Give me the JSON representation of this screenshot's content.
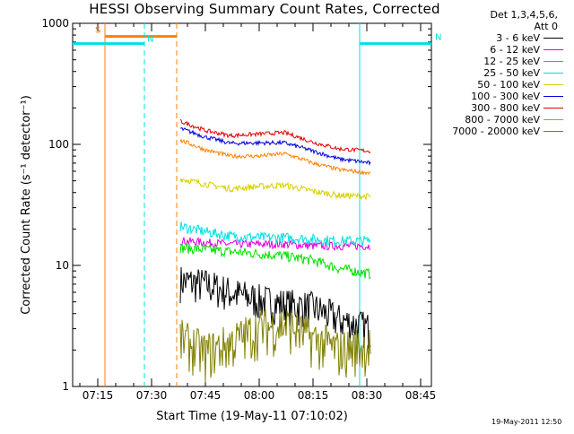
{
  "title": "HESSI Observing Summary Count Rates, Corrected",
  "timestamp": "19-May-2011 12:50",
  "legend": {
    "header_line1": "Det 1,3,4,5,6,",
    "header_line2": "Att 0",
    "entries": [
      {
        "label": "3 - 6 keV",
        "color": "#000000"
      },
      {
        "label": "6 - 12 keV",
        "color": "#e000e0"
      },
      {
        "label": "12 - 25 keV",
        "color": "#00e000"
      },
      {
        "label": "25 - 50 keV",
        "color": "#00e0e0"
      },
      {
        "label": "50 - 100 keV",
        "color": "#d8d000"
      },
      {
        "label": "100 - 300 keV",
        "color": "#0000e0"
      },
      {
        "label": "300 - 800 keV",
        "color": "#e00000"
      },
      {
        "label": "800 - 7000 keV",
        "color": "#ff8000"
      },
      {
        "label": "7000 - 20000 keV",
        "color": "#808000"
      }
    ]
  },
  "chart_data": {
    "type": "line",
    "title": "HESSI Observing Summary Count Rates, Corrected",
    "xlabel": "Start Time (19-May-11 07:10:02)",
    "ylabel": "Corrected Count Rate (s⁻¹ detector⁻¹)",
    "y_scale": "log",
    "ylim": [
      1,
      1000
    ],
    "xlim": [
      "07:08",
      "08:48"
    ],
    "x_ticks": [
      "07:15",
      "07:30",
      "07:45",
      "08:00",
      "08:15",
      "08:30",
      "08:45"
    ],
    "y_ticks": [
      "1",
      "10",
      "100",
      "1000"
    ],
    "grid": false,
    "legend_position": "right, outside plot",
    "series": [
      {
        "name": "3 - 6 keV",
        "color": "#000000",
        "x": [
          "07:38",
          "07:45",
          "07:52",
          "08:00",
          "08:07",
          "08:15",
          "08:22",
          "08:31"
        ],
        "y": [
          7.5,
          7.0,
          6.0,
          5.2,
          4.8,
          4.5,
          3.6,
          3.0
        ]
      },
      {
        "name": "6 - 12 keV",
        "color": "#e000e0",
        "x": [
          "07:38",
          "07:45",
          "07:52",
          "08:00",
          "08:07",
          "08:15",
          "08:22",
          "08:31"
        ],
        "y": [
          16,
          15.5,
          15,
          15,
          15,
          14.5,
          14.5,
          14.5
        ]
      },
      {
        "name": "12 - 25 keV",
        "color": "#00e000",
        "x": [
          "07:38",
          "07:45",
          "07:52",
          "08:00",
          "08:07",
          "08:15",
          "08:22",
          "08:31"
        ],
        "y": [
          14,
          13.5,
          13,
          12.5,
          12,
          11,
          9.5,
          8.5
        ]
      },
      {
        "name": "25 - 50 keV",
        "color": "#00e0e0",
        "x": [
          "07:38",
          "07:45",
          "07:52",
          "08:00",
          "08:07",
          "08:15",
          "08:22",
          "08:31"
        ],
        "y": [
          21,
          19,
          17.5,
          17,
          17,
          16.5,
          16,
          16
        ]
      },
      {
        "name": "50 - 100 keV",
        "color": "#d8d000",
        "x": [
          "07:38",
          "07:45",
          "07:52",
          "08:00",
          "08:07",
          "08:15",
          "08:22",
          "08:31"
        ],
        "y": [
          52,
          47,
          43,
          45,
          46,
          41,
          38,
          37
        ]
      },
      {
        "name": "100 - 300 keV",
        "color": "#0000e0",
        "x": [
          "07:38",
          "07:45",
          "07:52",
          "08:00",
          "08:07",
          "08:15",
          "08:22",
          "08:31"
        ],
        "y": [
          135,
          115,
          102,
          103,
          103,
          88,
          76,
          70
        ]
      },
      {
        "name": "300 - 800 keV",
        "color": "#e00000",
        "x": [
          "07:38",
          "07:45",
          "07:52",
          "08:00",
          "08:07",
          "08:15",
          "08:22",
          "08:31"
        ],
        "y": [
          155,
          130,
          118,
          122,
          125,
          104,
          92,
          88
        ]
      },
      {
        "name": "800 - 7000 keV",
        "color": "#ff8000",
        "x": [
          "07:38",
          "07:45",
          "07:52",
          "08:00",
          "08:07",
          "08:15",
          "08:22",
          "08:31"
        ],
        "y": [
          108,
          90,
          80,
          80,
          84,
          70,
          62,
          58
        ]
      },
      {
        "name": "7000 - 20000 keV",
        "color": "#808000",
        "x": [
          "07:38",
          "07:45",
          "07:52",
          "08:00",
          "08:07",
          "08:15",
          "08:22",
          "08:31"
        ],
        "y": [
          2.5,
          1.9,
          2.3,
          3.0,
          3.3,
          2.5,
          2.0,
          2.2
        ]
      }
    ],
    "annotations": [
      {
        "label": "S",
        "color": "#ff8000",
        "start": "07:17",
        "end": "07:37"
      },
      {
        "label": "N",
        "color": "#00e0e0",
        "start": "07:08",
        "end": "07:28"
      },
      {
        "label": "N",
        "color": "#00e0e0",
        "start": "08:28",
        "end": "08:48"
      }
    ]
  }
}
